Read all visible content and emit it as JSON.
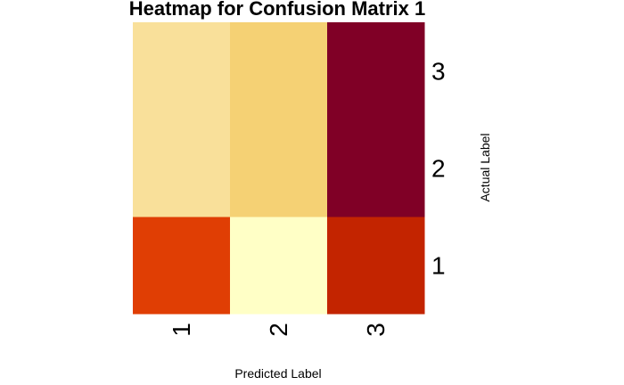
{
  "chart_data": {
    "type": "heatmap",
    "title": "Heatmap for Confusion Matrix 1",
    "xlabel": "Predicted Label",
    "ylabel": "Actual Label",
    "x_categories": [
      "1",
      "2",
      "3"
    ],
    "y_categories": [
      "1",
      "2",
      "3"
    ],
    "colormap": "YlOrRd",
    "cells": [
      {
        "actual": "1",
        "predicted": "1",
        "color": "#E03E04"
      },
      {
        "actual": "1",
        "predicted": "2",
        "color": "#FFFFC6"
      },
      {
        "actual": "1",
        "predicted": "3",
        "color": "#C32400"
      },
      {
        "actual": "2",
        "predicted": "1",
        "color": "#F9E09A"
      },
      {
        "actual": "2",
        "predicted": "2",
        "color": "#F5D174"
      },
      {
        "actual": "2",
        "predicted": "3",
        "color": "#800026"
      },
      {
        "actual": "3",
        "predicted": "1",
        "color": "#F9E09A"
      },
      {
        "actual": "3",
        "predicted": "2",
        "color": "#F5D174"
      },
      {
        "actual": "3",
        "predicted": "3",
        "color": "#800026"
      }
    ]
  }
}
